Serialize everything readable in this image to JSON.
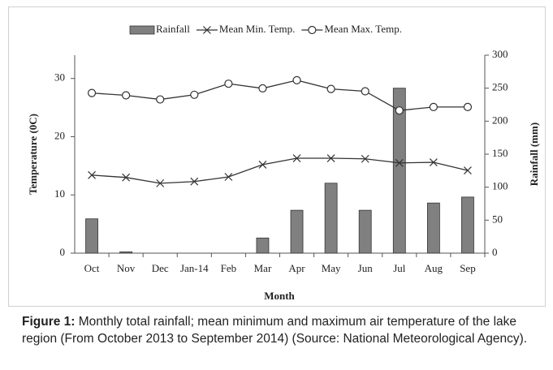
{
  "chart_data": {
    "type": "bar_line",
    "legend": "top",
    "xlabel": "Month",
    "ylabel": "Temperature  (0C)",
    "y2label": "Rainfall (mm)",
    "categories": [
      "Oct",
      "Nov",
      "Dec",
      "Jan-14",
      "Feb",
      "Mar",
      "Apr",
      "May",
      "Jun",
      "Jul",
      "Aug",
      "Sep"
    ],
    "ylim": [
      0,
      34
    ],
    "yticks": [
      0,
      10,
      20,
      30
    ],
    "y2lim": [
      0,
      300
    ],
    "y2ticks": [
      0,
      50,
      100,
      150,
      200,
      250,
      300
    ],
    "series": [
      {
        "name": "Rainfall",
        "type": "bar",
        "axis": "y2",
        "color": "#808080",
        "values": [
          52,
          2,
          0,
          0,
          0,
          23,
          65,
          106,
          65,
          250,
          76,
          85
        ]
      },
      {
        "name": "Mean Min. Temp.",
        "type": "line",
        "marker": "x",
        "color": "#333333",
        "values": [
          13.4,
          13.0,
          12.0,
          12.3,
          13.1,
          15.2,
          16.3,
          16.3,
          16.2,
          15.5,
          15.6,
          14.2
        ]
      },
      {
        "name": "Mean Max. Temp.",
        "type": "line",
        "marker": "circle",
        "color": "#333333",
        "values": [
          27.5,
          27.1,
          26.4,
          27.2,
          29.1,
          28.3,
          29.7,
          28.2,
          27.8,
          24.5,
          25.1,
          25.1
        ]
      }
    ]
  },
  "caption": {
    "label": "Figure 1:",
    "text": " Monthly total rainfall; mean minimum and maximum air temperature of the lake region (From   October 2013 to September 2014) (Source: National Meteorological Agency)."
  }
}
